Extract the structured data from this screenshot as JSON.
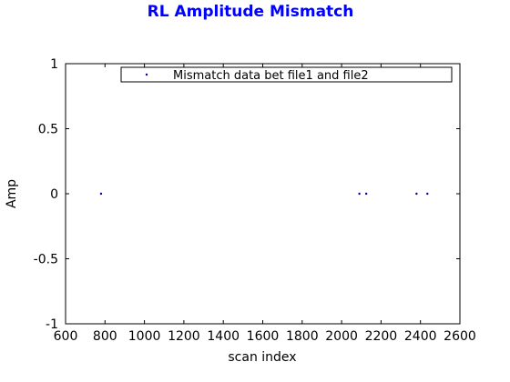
{
  "chart_data": {
    "type": "scatter",
    "title": "RL Amplitude Mismatch",
    "xlabel": "scan index",
    "ylabel": "Amp",
    "xlim": [
      600,
      2600
    ],
    "ylim": [
      -1,
      1
    ],
    "xticks": [
      "600",
      "800",
      "1000",
      "1200",
      "1400",
      "1600",
      "1800",
      "2000",
      "2200",
      "2400",
      "2600"
    ],
    "yticks": [
      "-1",
      "-0.5",
      "0",
      "0.5",
      "1"
    ],
    "grid": false,
    "legend_position": "top-right",
    "marker_color": "#0000aa",
    "series": [
      {
        "name": "Mismatch data bet file1 and file2",
        "points": [
          {
            "x": 780,
            "y": 0
          },
          {
            "x": 2090,
            "y": 0
          },
          {
            "x": 2125,
            "y": 0
          },
          {
            "x": 2380,
            "y": 0
          },
          {
            "x": 2435,
            "y": 0
          }
        ]
      }
    ]
  }
}
